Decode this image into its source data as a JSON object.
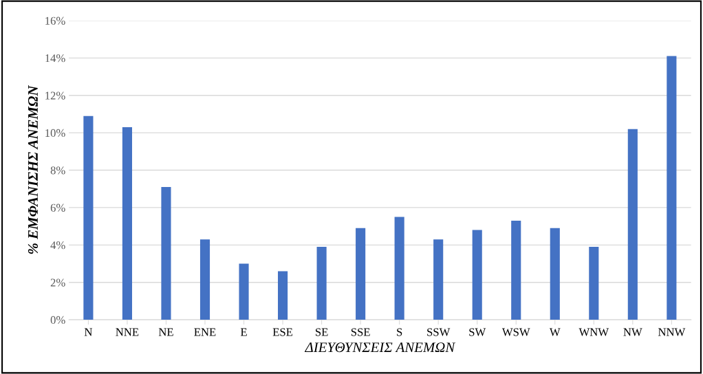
{
  "chart_data": {
    "type": "bar",
    "xlabel": "ΔΙΕΥΘΥΝΣΕΙΣ ΑΝΕΜΩΝ",
    "ylabel": "% ΕΜΦΑΝΙΣΗΣ ΑΝΕΜΩΝ",
    "categories": [
      "N",
      "NNE",
      "NE",
      "ENE",
      "E",
      "ESE",
      "SE",
      "SSE",
      "S",
      "SSW",
      "SW",
      "WSW",
      "W",
      "WNW",
      "NW",
      "NNW"
    ],
    "values": [
      10.9,
      10.3,
      7.1,
      4.3,
      3.0,
      2.6,
      3.9,
      4.9,
      5.5,
      4.3,
      4.8,
      5.3,
      4.9,
      3.9,
      10.2,
      14.1
    ],
    "color": "#4472c4",
    "ylim": [
      0,
      16
    ],
    "yticks": [
      {
        "value": 0,
        "label": "0%"
      },
      {
        "value": 2,
        "label": "2%"
      },
      {
        "value": 4,
        "label": "4%"
      },
      {
        "value": 6,
        "label": "6%"
      },
      {
        "value": 8,
        "label": "8%"
      },
      {
        "value": 10,
        "label": "10%"
      },
      {
        "value": 12,
        "label": "12%"
      },
      {
        "value": 14,
        "label": "14%"
      },
      {
        "value": 16,
        "label": "16%"
      }
    ],
    "grid": "y"
  }
}
